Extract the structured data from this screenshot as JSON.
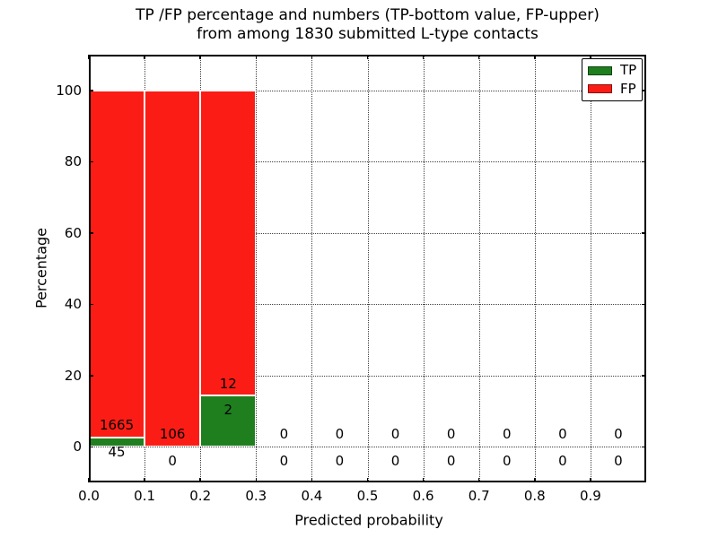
{
  "figure": {
    "title_line1": "TP /FP percentage and numbers (TP-bottom value, FP-upper)",
    "title_line2": "from among 1830 submitted L-type contacts"
  },
  "chart_data": {
    "type": "bar",
    "stacked": true,
    "title": "TP /FP percentage and numbers (TP-bottom value, FP-upper) from among 1830 submitted L-type contacts",
    "xlabel": "Predicted probability",
    "ylabel": "Percentage",
    "xlim": [
      0.0,
      1.0
    ],
    "ylim": [
      -10,
      110
    ],
    "xtick_labels": [
      "0.0",
      "0.1",
      "0.2",
      "0.3",
      "0.4",
      "0.5",
      "0.6",
      "0.7",
      "0.8",
      "0.9"
    ],
    "ytick_labels": [
      "0",
      "20",
      "40",
      "60",
      "80",
      "100"
    ],
    "grid": {
      "visible": true,
      "style": "dotted"
    },
    "legend": {
      "position": "upper-right",
      "entries": [
        {
          "label": "TP",
          "color": "#1f7f1f"
        },
        {
          "label": "FP",
          "color": "#fb1d15"
        }
      ]
    },
    "bin_edges": [
      0.0,
      0.1,
      0.2,
      0.3,
      0.4,
      0.5,
      0.6,
      0.7,
      0.8,
      0.9,
      1.0
    ],
    "categories": [
      "0.0-0.1",
      "0.1-0.2",
      "0.2-0.3",
      "0.3-0.4",
      "0.4-0.5",
      "0.5-0.6",
      "0.6-0.7",
      "0.7-0.8",
      "0.8-0.9",
      "0.9-1.0"
    ],
    "series": [
      {
        "name": "TP",
        "counts": [
          45,
          0,
          2,
          0,
          0,
          0,
          0,
          0,
          0,
          0
        ]
      },
      {
        "name": "FP",
        "counts": [
          1665,
          106,
          12,
          0,
          0,
          0,
          0,
          0,
          0,
          0
        ]
      }
    ],
    "total_shown_in_title": 1830,
    "values_note": "bar heights are percentages within each bin (TP+FP stack to 100%); annotations show raw counts, TP below / FP above the bar base",
    "annotation_offsets_pct": {
      "fp_label": 3.5,
      "tp_label": -4
    }
  },
  "colors": {
    "tp": "#1f7f1f",
    "fp": "#fb1d15",
    "grid": "#111111",
    "text": "#000000",
    "background": "#ffffff"
  }
}
